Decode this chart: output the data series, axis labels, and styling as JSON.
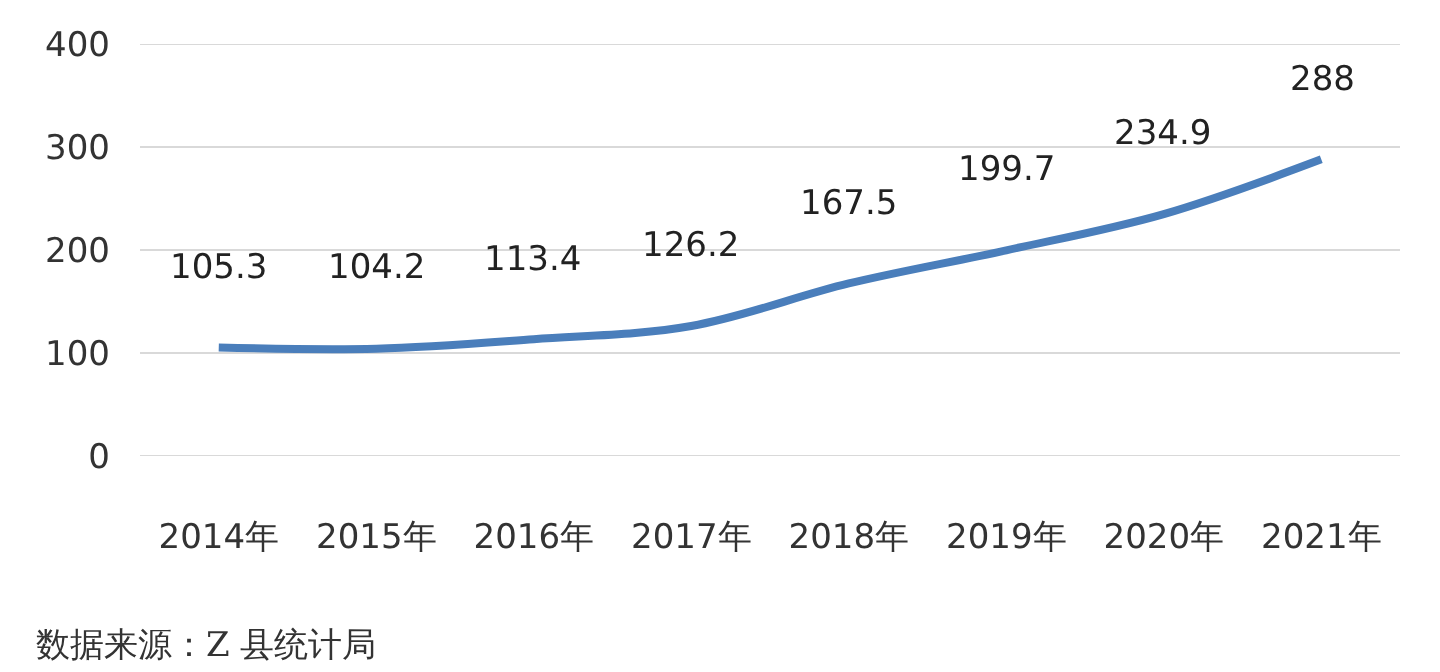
{
  "chart_data": {
    "type": "line",
    "categories": [
      "2014年",
      "2015年",
      "2016年",
      "2017年",
      "2018年",
      "2019年",
      "2020年",
      "2021年"
    ],
    "series": [
      {
        "color": "#4a7ebb",
        "values": [
          105.3,
          104.2,
          113.4,
          126.2,
          167.5,
          199.7,
          234.9,
          288
        ]
      }
    ],
    "ylim": [
      0,
      400
    ],
    "yticks": [
      0,
      100,
      200,
      300,
      400
    ],
    "grid": "y",
    "marker": "none",
    "line_style": "solid",
    "data_labels": true,
    "annotations": [
      "数据来源：Z 县统计局"
    ]
  }
}
